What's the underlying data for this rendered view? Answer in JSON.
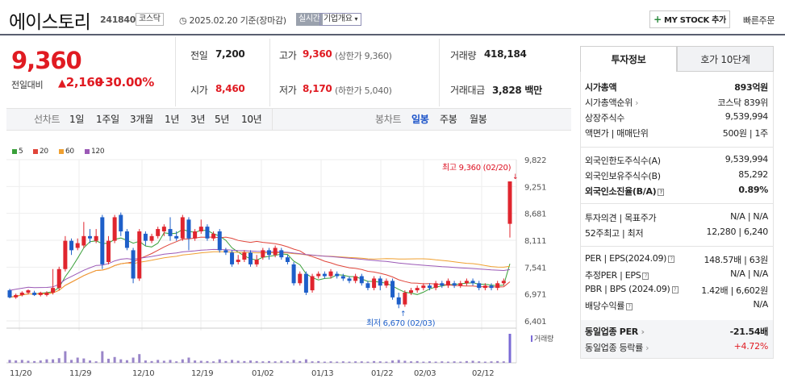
{
  "header": {
    "name": "에이스토리",
    "code": "241840",
    "market": "코스닥",
    "date": "2025.02.20 기준(장마감)",
    "realtime": "실시간",
    "corp_info": "기업개요",
    "mystock_plus": "+",
    "mystock_label": "MY STOCK 추가",
    "quick_order": "빠른주문"
  },
  "price": {
    "current": "9,360",
    "change_label": "전일대비",
    "change": "2,160",
    "percent": "+30.00%"
  },
  "quote": {
    "prev_label": "전일",
    "prev": "7,200",
    "open_label": "시가",
    "open": "8,460",
    "high_label": "고가",
    "high": "9,360",
    "upper_limit": "(상한가 9,360)",
    "low_label": "저가",
    "low": "8,170",
    "lower_limit": "(하한가 5,040)",
    "volume_label": "거래량",
    "volume": "418,184",
    "amount_label": "거래대금",
    "amount": "3,828 백만"
  },
  "ranges": {
    "line_label": "선차트",
    "items": [
      "1일",
      "1주일",
      "3개월",
      "1년",
      "3년",
      "5년",
      "10년"
    ],
    "candle_label": "봉차트",
    "candle_items": [
      "일봉",
      "주봉",
      "월봉"
    ],
    "candle_selected": "일봉"
  },
  "legend": [
    {
      "label": "5",
      "color": "#3aa03a"
    },
    {
      "label": "20",
      "color": "#e0453a"
    },
    {
      "label": "60",
      "color": "#f0a030"
    },
    {
      "label": "120",
      "color": "#9b59b6"
    }
  ],
  "chart_data": {
    "type": "candlestick",
    "y_ticks": [
      "9,822",
      "9,251",
      "8,681",
      "8,111",
      "7,541",
      "6,971",
      "6,401"
    ],
    "ylim": [
      6401,
      9822
    ],
    "x_ticks": [
      "11/20",
      "11/29",
      "12/10",
      "12/19",
      "01/02",
      "01/13",
      "01/22",
      "02/03",
      "02/12"
    ],
    "high_label": "최고 9,360 (02/20)",
    "low_label": "최저 6,670 (02/03)",
    "volume_label": "거래량",
    "candles": [
      {
        "o": 7050,
        "c": 6900,
        "h": 7080,
        "l": 6880,
        "v": 0.1
      },
      {
        "o": 6900,
        "c": 6950,
        "h": 6980,
        "l": 6870,
        "v": 0.08
      },
      {
        "o": 6950,
        "c": 7000,
        "h": 7030,
        "l": 6920,
        "v": 0.1
      },
      {
        "o": 7000,
        "c": 7050,
        "h": 7070,
        "l": 6960,
        "v": 0.07
      },
      {
        "o": 7000,
        "c": 6950,
        "h": 7040,
        "l": 6930,
        "v": 0.06
      },
      {
        "o": 6950,
        "c": 7000,
        "h": 7020,
        "l": 6920,
        "v": 0.08
      },
      {
        "o": 6950,
        "c": 7000,
        "h": 7030,
        "l": 6920,
        "v": 0.12
      },
      {
        "o": 7000,
        "c": 7100,
        "h": 7500,
        "l": 6960,
        "v": 0.12
      },
      {
        "o": 7100,
        "c": 7500,
        "h": 7550,
        "l": 7050,
        "v": 0.16
      },
      {
        "o": 7500,
        "c": 8100,
        "h": 8200,
        "l": 7450,
        "v": 0.4
      },
      {
        "o": 8100,
        "c": 7900,
        "h": 8150,
        "l": 7800,
        "v": 0.1
      },
      {
        "o": 7950,
        "c": 8050,
        "h": 8150,
        "l": 7900,
        "v": 0.18
      },
      {
        "o": 8000,
        "c": 8200,
        "h": 8500,
        "l": 7950,
        "v": 0.15
      },
      {
        "o": 8200,
        "c": 8150,
        "h": 8350,
        "l": 8050,
        "v": 0.08
      },
      {
        "o": 8100,
        "c": 8200,
        "h": 8350,
        "l": 8050,
        "v": 0.05
      },
      {
        "o": 8600,
        "c": 7600,
        "h": 8650,
        "l": 7500,
        "v": 0.4
      },
      {
        "o": 7650,
        "c": 8100,
        "h": 8200,
        "l": 7600,
        "v": 0.14
      },
      {
        "o": 8100,
        "c": 8600,
        "h": 8650,
        "l": 8050,
        "v": 0.2
      },
      {
        "o": 8650,
        "c": 8300,
        "h": 8700,
        "l": 8200,
        "v": 0.12
      },
      {
        "o": 8300,
        "c": 7950,
        "h": 8350,
        "l": 7900,
        "v": 0.09
      },
      {
        "o": 7900,
        "c": 7300,
        "h": 7950,
        "l": 7200,
        "v": 0.18
      },
      {
        "o": 7300,
        "c": 8300,
        "h": 8350,
        "l": 7250,
        "v": 0.3
      },
      {
        "o": 8250,
        "c": 8100,
        "h": 8300,
        "l": 8000,
        "v": 0.08
      },
      {
        "o": 8100,
        "c": 8200,
        "h": 8250,
        "l": 8050,
        "v": 0.06
      },
      {
        "o": 8200,
        "c": 8350,
        "h": 8400,
        "l": 8150,
        "v": 0.1
      },
      {
        "o": 8300,
        "c": 8400,
        "h": 8450,
        "l": 8200,
        "v": 0.07
      },
      {
        "o": 8350,
        "c": 8200,
        "h": 8600,
        "l": 8100,
        "v": 0.1
      },
      {
        "o": 8200,
        "c": 8150,
        "h": 8300,
        "l": 8100,
        "v": 0.05
      },
      {
        "o": 8150,
        "c": 8600,
        "h": 8650,
        "l": 8100,
        "v": 0.12
      },
      {
        "o": 8550,
        "c": 8150,
        "h": 8600,
        "l": 7900,
        "v": 0.18
      },
      {
        "o": 8150,
        "c": 8300,
        "h": 8350,
        "l": 8100,
        "v": 0.08
      },
      {
        "o": 8300,
        "c": 8400,
        "h": 8550,
        "l": 8250,
        "v": 0.07
      },
      {
        "o": 8400,
        "c": 8150,
        "h": 8450,
        "l": 8100,
        "v": 0.06
      },
      {
        "o": 8150,
        "c": 8250,
        "h": 8300,
        "l": 8100,
        "v": 0.05
      },
      {
        "o": 8300,
        "c": 7900,
        "h": 8350,
        "l": 7850,
        "v": 0.12
      },
      {
        "o": 7900,
        "c": 7850,
        "h": 7950,
        "l": 7800,
        "v": 0.06
      },
      {
        "o": 7850,
        "c": 7600,
        "h": 7900,
        "l": 7550,
        "v": 0.1
      },
      {
        "o": 7650,
        "c": 7700,
        "h": 7800,
        "l": 7600,
        "v": 0.07
      },
      {
        "o": 7700,
        "c": 7850,
        "h": 7900,
        "l": 7650,
        "v": 0.06
      },
      {
        "o": 7850,
        "c": 7600,
        "h": 7900,
        "l": 7550,
        "v": 0.08
      },
      {
        "o": 7600,
        "c": 7700,
        "h": 7800,
        "l": 7550,
        "v": 0.06
      },
      {
        "o": 7750,
        "c": 7900,
        "h": 7950,
        "l": 7700,
        "v": 0.05
      },
      {
        "o": 7900,
        "c": 7800,
        "h": 7950,
        "l": 7700,
        "v": 0.06
      },
      {
        "o": 7800,
        "c": 7950,
        "h": 8000,
        "l": 7750,
        "v": 0.05
      },
      {
        "o": 7900,
        "c": 7750,
        "h": 7950,
        "l": 7700,
        "v": 0.07
      },
      {
        "o": 7750,
        "c": 7650,
        "h": 7800,
        "l": 7600,
        "v": 0.05
      },
      {
        "o": 7600,
        "c": 7200,
        "h": 7650,
        "l": 7150,
        "v": 0.1
      },
      {
        "o": 7200,
        "c": 7400,
        "h": 7450,
        "l": 7150,
        "v": 0.06
      },
      {
        "o": 7400,
        "c": 7000,
        "h": 7450,
        "l": 6950,
        "v": 0.12
      },
      {
        "o": 7050,
        "c": 7350,
        "h": 7400,
        "l": 7000,
        "v": 0.05
      },
      {
        "o": 7350,
        "c": 7400,
        "h": 7450,
        "l": 7300,
        "v": 0.06
      },
      {
        "o": 7400,
        "c": 7350,
        "h": 7450,
        "l": 7300,
        "v": 0.04
      },
      {
        "o": 7350,
        "c": 7450,
        "h": 7500,
        "l": 7300,
        "v": 0.05
      },
      {
        "o": 7400,
        "c": 7350,
        "h": 7450,
        "l": 7300,
        "v": 0.04
      },
      {
        "o": 7350,
        "c": 7300,
        "h": 7400,
        "l": 7250,
        "v": 0.05
      },
      {
        "o": 7300,
        "c": 7250,
        "h": 7350,
        "l": 7200,
        "v": 0.04
      },
      {
        "o": 7250,
        "c": 7350,
        "h": 7400,
        "l": 7200,
        "v": 0.05
      },
      {
        "o": 7350,
        "c": 7200,
        "h": 7400,
        "l": 7150,
        "v": 0.05
      },
      {
        "o": 7200,
        "c": 7100,
        "h": 7250,
        "l": 7050,
        "v": 0.04
      },
      {
        "o": 7100,
        "c": 7300,
        "h": 7350,
        "l": 7050,
        "v": 0.06
      },
      {
        "o": 7300,
        "c": 7150,
        "h": 7350,
        "l": 7050,
        "v": 0.05
      },
      {
        "o": 7150,
        "c": 7250,
        "h": 7300,
        "l": 7100,
        "v": 0.04
      },
      {
        "o": 7250,
        "c": 6900,
        "h": 7300,
        "l": 6850,
        "v": 0.08
      },
      {
        "o": 6900,
        "c": 6750,
        "h": 7000,
        "l": 6670,
        "v": 0.1
      },
      {
        "o": 6750,
        "c": 7000,
        "h": 7050,
        "l": 6700,
        "v": 0.07
      },
      {
        "o": 7000,
        "c": 7050,
        "h": 7100,
        "l": 6950,
        "v": 0.05
      },
      {
        "o": 7050,
        "c": 7100,
        "h": 7150,
        "l": 7000,
        "v": 0.06
      },
      {
        "o": 7100,
        "c": 7150,
        "h": 7200,
        "l": 7050,
        "v": 0.04
      },
      {
        "o": 7150,
        "c": 7100,
        "h": 7200,
        "l": 7050,
        "v": 0.05
      },
      {
        "o": 7100,
        "c": 7200,
        "h": 7250,
        "l": 7050,
        "v": 0.04
      },
      {
        "o": 7200,
        "c": 7150,
        "h": 7250,
        "l": 7100,
        "v": 0.05
      },
      {
        "o": 7150,
        "c": 7250,
        "h": 7300,
        "l": 7100,
        "v": 0.04
      },
      {
        "o": 7200,
        "c": 7150,
        "h": 7250,
        "l": 7100,
        "v": 0.05
      },
      {
        "o": 7150,
        "c": 7200,
        "h": 7250,
        "l": 7100,
        "v": 0.04
      },
      {
        "o": 7200,
        "c": 7250,
        "h": 7300,
        "l": 7150,
        "v": 0.06
      },
      {
        "o": 7250,
        "c": 7200,
        "h": 7300,
        "l": 7150,
        "v": 0.07
      },
      {
        "o": 7200,
        "c": 7100,
        "h": 7250,
        "l": 7050,
        "v": 0.05
      },
      {
        "o": 7100,
        "c": 7150,
        "h": 7200,
        "l": 7050,
        "v": 0.04
      },
      {
        "o": 7150,
        "c": 7100,
        "h": 7200,
        "l": 7050,
        "v": 0.05
      },
      {
        "o": 7100,
        "c": 7200,
        "h": 7250,
        "l": 7050,
        "v": 0.06
      },
      {
        "o": 7200,
        "c": 7250,
        "h": 7300,
        "l": 7150,
        "v": 0.05
      },
      {
        "o": 8460,
        "c": 9360,
        "h": 9360,
        "l": 8170,
        "v": 1.0
      }
    ]
  },
  "panel": {
    "tabs": [
      "투자정보",
      "호가 10단계"
    ],
    "rows": [
      {
        "label": "시가총액",
        "value": "893억원",
        "bold": true
      },
      {
        "label": "시가총액순위",
        "value": "코스닥 839위",
        "arrow": true
      },
      {
        "label": "상장주식수",
        "value": "9,539,994"
      },
      {
        "label": "액면가 | 매매단위",
        "value": "500원 | 1주"
      }
    ],
    "rows2": [
      {
        "label": "외국인한도주식수(A)",
        "value": "9,539,994"
      },
      {
        "label": "외국인보유주식수(B)",
        "value": "85,292"
      },
      {
        "label": "외국인소진율(B/A)",
        "value": "0.89%",
        "bold": true,
        "icon": true
      }
    ],
    "rows3": [
      {
        "label": "투자의견 | 목표주가",
        "value": "N/A | N/A"
      },
      {
        "label": "52주최고 | 최저",
        "value": "12,280 | 6,240"
      }
    ],
    "rows4": [
      {
        "label": "PER | EPS(2024.09)",
        "value": "148.57배 | 63원",
        "icon": true
      },
      {
        "label": "추정PER | EPS",
        "value": "N/A | N/A",
        "icon": true
      },
      {
        "label": "PBR | BPS (2024.09)",
        "value": "1.42배 | 6,602원",
        "icon": true
      },
      {
        "label": "배당수익률",
        "value": "N/A",
        "icon": true
      }
    ],
    "rows5": [
      {
        "label": "동일업종 PER",
        "value": "-21.54배",
        "bold": true,
        "arrow": true
      },
      {
        "label": "동일업종 등락률",
        "value": "+4.72%",
        "red": true,
        "arrow": true
      }
    ]
  }
}
